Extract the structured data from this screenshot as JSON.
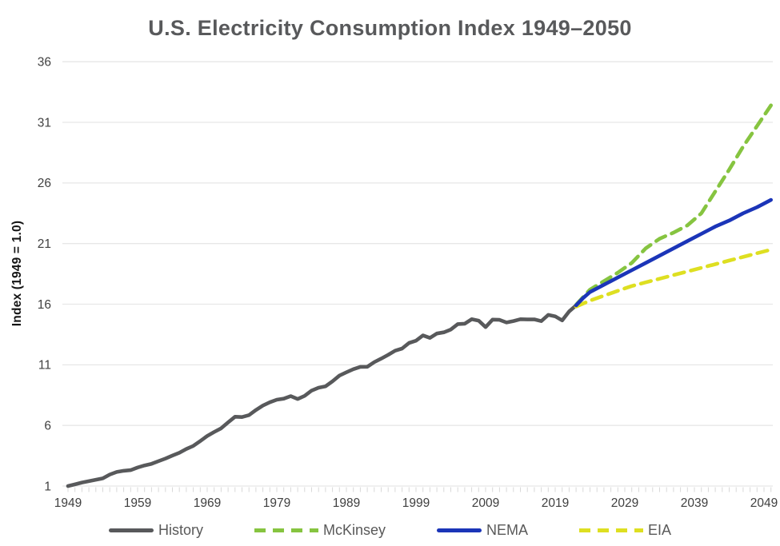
{
  "page": {
    "background": "#ffffff"
  },
  "chart_data": {
    "type": "line",
    "title": "U.S. Electricity Consumption Index 1949–2050",
    "ylabel": "Index (1949 = 1.0)",
    "xlabel": "",
    "xlim": [
      1949,
      2050
    ],
    "ylim": [
      1,
      36
    ],
    "yticks": [
      1,
      6,
      11,
      16,
      21,
      26,
      31,
      36
    ],
    "xticks": [
      1949,
      1959,
      1969,
      1979,
      1989,
      1999,
      2009,
      2019,
      2029,
      2039,
      2049
    ],
    "grid": "horizontal",
    "legend_position": "bottom",
    "axis_style": {
      "grid_color": "#e7e7e7",
      "minor_tick_color": "#d8d8d8",
      "tick_label_color": "#404040",
      "title_color": "#58595b"
    },
    "draw_order": [
      "History",
      "McKinsey",
      "EIA",
      "NEMA"
    ],
    "series": [
      {
        "name": "History",
        "color": "#58595b",
        "style": "solid",
        "points": [
          [
            1949,
            1.0
          ],
          [
            1950,
            1.14
          ],
          [
            1951,
            1.29
          ],
          [
            1952,
            1.4
          ],
          [
            1953,
            1.52
          ],
          [
            1954,
            1.63
          ],
          [
            1955,
            1.95
          ],
          [
            1956,
            2.16
          ],
          [
            1957,
            2.26
          ],
          [
            1958,
            2.31
          ],
          [
            1959,
            2.53
          ],
          [
            1960,
            2.7
          ],
          [
            1961,
            2.83
          ],
          [
            1962,
            3.05
          ],
          [
            1963,
            3.27
          ],
          [
            1964,
            3.51
          ],
          [
            1965,
            3.74
          ],
          [
            1966,
            4.06
          ],
          [
            1967,
            4.31
          ],
          [
            1968,
            4.71
          ],
          [
            1969,
            5.13
          ],
          [
            1970,
            5.46
          ],
          [
            1971,
            5.76
          ],
          [
            1972,
            6.25
          ],
          [
            1973,
            6.72
          ],
          [
            1974,
            6.69
          ],
          [
            1975,
            6.85
          ],
          [
            1976,
            7.27
          ],
          [
            1977,
            7.64
          ],
          [
            1978,
            7.91
          ],
          [
            1979,
            8.12
          ],
          [
            1980,
            8.21
          ],
          [
            1981,
            8.42
          ],
          [
            1982,
            8.18
          ],
          [
            1983,
            8.44
          ],
          [
            1984,
            8.87
          ],
          [
            1985,
            9.11
          ],
          [
            1986,
            9.22
          ],
          [
            1987,
            9.64
          ],
          [
            1988,
            10.11
          ],
          [
            1989,
            10.38
          ],
          [
            1990,
            10.64
          ],
          [
            1991,
            10.83
          ],
          [
            1992,
            10.84
          ],
          [
            1993,
            11.22
          ],
          [
            1994,
            11.51
          ],
          [
            1995,
            11.82
          ],
          [
            1996,
            12.16
          ],
          [
            1997,
            12.34
          ],
          [
            1998,
            12.8
          ],
          [
            1999,
            12.99
          ],
          [
            2000,
            13.42
          ],
          [
            2001,
            13.22
          ],
          [
            2002,
            13.58
          ],
          [
            2003,
            13.68
          ],
          [
            2004,
            13.91
          ],
          [
            2005,
            14.36
          ],
          [
            2006,
            14.39
          ],
          [
            2007,
            14.76
          ],
          [
            2008,
            14.64
          ],
          [
            2009,
            14.11
          ],
          [
            2010,
            14.73
          ],
          [
            2011,
            14.71
          ],
          [
            2012,
            14.49
          ],
          [
            2013,
            14.61
          ],
          [
            2014,
            14.76
          ],
          [
            2015,
            14.74
          ],
          [
            2016,
            14.75
          ],
          [
            2017,
            14.6
          ],
          [
            2018,
            15.12
          ],
          [
            2019,
            15.0
          ],
          [
            2020,
            14.66
          ],
          [
            2021,
            15.4
          ],
          [
            2022,
            15.9
          ]
        ]
      },
      {
        "name": "McKinsey",
        "color": "#86c440",
        "style": "dashed",
        "points": [
          [
            2022,
            15.95
          ],
          [
            2024,
            17.2
          ],
          [
            2026,
            17.9
          ],
          [
            2028,
            18.6
          ],
          [
            2030,
            19.4
          ],
          [
            2032,
            20.6
          ],
          [
            2034,
            21.4
          ],
          [
            2036,
            21.9
          ],
          [
            2038,
            22.5
          ],
          [
            2040,
            23.5
          ],
          [
            2042,
            25.3
          ],
          [
            2044,
            27.1
          ],
          [
            2046,
            29.0
          ],
          [
            2048,
            30.7
          ],
          [
            2050,
            32.4
          ]
        ]
      },
      {
        "name": "NEMA",
        "color": "#1b35b8",
        "style": "solid",
        "points": [
          [
            2022,
            15.9
          ],
          [
            2023,
            16.5
          ],
          [
            2024,
            17.0
          ],
          [
            2026,
            17.6
          ],
          [
            2028,
            18.2
          ],
          [
            2030,
            18.8
          ],
          [
            2032,
            19.4
          ],
          [
            2034,
            20.0
          ],
          [
            2036,
            20.6
          ],
          [
            2038,
            21.2
          ],
          [
            2040,
            21.8
          ],
          [
            2042,
            22.4
          ],
          [
            2044,
            22.9
          ],
          [
            2046,
            23.5
          ],
          [
            2048,
            24.0
          ],
          [
            2050,
            24.6
          ]
        ]
      },
      {
        "name": "EIA",
        "color": "#dedf21",
        "style": "dashed",
        "points": [
          [
            2022,
            15.8
          ],
          [
            2024,
            16.3
          ],
          [
            2026,
            16.7
          ],
          [
            2028,
            17.1
          ],
          [
            2030,
            17.5
          ],
          [
            2032,
            17.8
          ],
          [
            2034,
            18.1
          ],
          [
            2036,
            18.4
          ],
          [
            2038,
            18.7
          ],
          [
            2040,
            19.0
          ],
          [
            2042,
            19.3
          ],
          [
            2044,
            19.6
          ],
          [
            2046,
            19.9
          ],
          [
            2048,
            20.2
          ],
          [
            2050,
            20.5
          ]
        ]
      }
    ]
  }
}
